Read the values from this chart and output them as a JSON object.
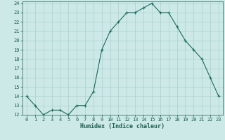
{
  "x": [
    0,
    1,
    2,
    3,
    4,
    5,
    6,
    7,
    8,
    9,
    10,
    11,
    12,
    13,
    14,
    15,
    16,
    17,
    18,
    19,
    20,
    21,
    22,
    23
  ],
  "y": [
    14,
    13,
    12,
    12.5,
    12.5,
    12,
    13,
    13,
    14.5,
    19,
    21,
    22,
    23,
    23,
    23.5,
    24,
    23,
    23,
    21.5,
    20,
    19,
    18,
    16,
    14
  ],
  "xlabel": "Humidex (Indice chaleur)",
  "line_color": "#1a6b5a",
  "bg_color": "#cce9e7",
  "grid_color": "#aad0cc",
  "text_color": "#1a5f50",
  "ylim": [
    12,
    24
  ],
  "xlim": [
    -0.5,
    23.5
  ],
  "yticks": [
    12,
    13,
    14,
    15,
    16,
    17,
    18,
    19,
    20,
    21,
    22,
    23,
    24
  ],
  "xticks": [
    0,
    1,
    2,
    3,
    4,
    5,
    6,
    7,
    8,
    9,
    10,
    11,
    12,
    13,
    14,
    15,
    16,
    17,
    18,
    19,
    20,
    21,
    22,
    23
  ]
}
